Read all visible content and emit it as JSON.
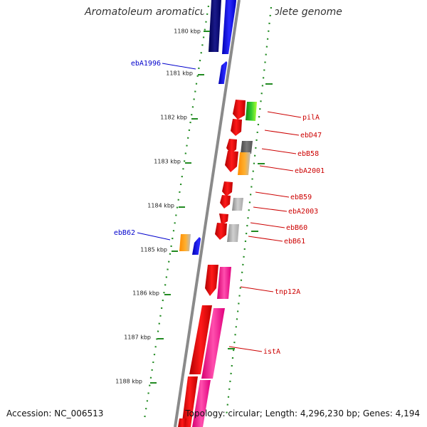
{
  "title": "Aromatoleum aromaticum EbN1, complete genome",
  "footer": {
    "accession": "Accession: NC_006513",
    "topology": "Topology: circular; Length: 4,296,230 bp; Genes: 4,194"
  },
  "ruler": [
    "1180 kbp",
    "1181 kbp",
    "1182 kbp",
    "1183 kbp",
    "1184 kbp",
    "1185 kbp",
    "1186 kbp",
    "1187 kbp",
    "1188 kbp"
  ],
  "gene_labels": [
    {
      "text": "ebA1996",
      "color": "#0000cc"
    },
    {
      "text": "ebB62",
      "color": "#0000cc"
    },
    {
      "text": "pilA",
      "color": "#cc0000"
    },
    {
      "text": "ebD47",
      "color": "#cc0000"
    },
    {
      "text": "ebB58",
      "color": "#cc0000"
    },
    {
      "text": "ebA2001",
      "color": "#cc0000"
    },
    {
      "text": "ebB59",
      "color": "#cc0000"
    },
    {
      "text": "ebA2003",
      "color": "#cc0000"
    },
    {
      "text": "ebB60",
      "color": "#cc0000"
    },
    {
      "text": "ebB61",
      "color": "#cc0000"
    },
    {
      "text": "tnp12A",
      "color": "#cc0000"
    },
    {
      "text": "istA",
      "color": "#cc0000"
    }
  ],
  "colors": {
    "forward_cds": "#ff0000",
    "reverse_cds": "#0000ff",
    "backbone": "#888888",
    "tick": "#228b22",
    "pink": "#ff2d9b"
  }
}
